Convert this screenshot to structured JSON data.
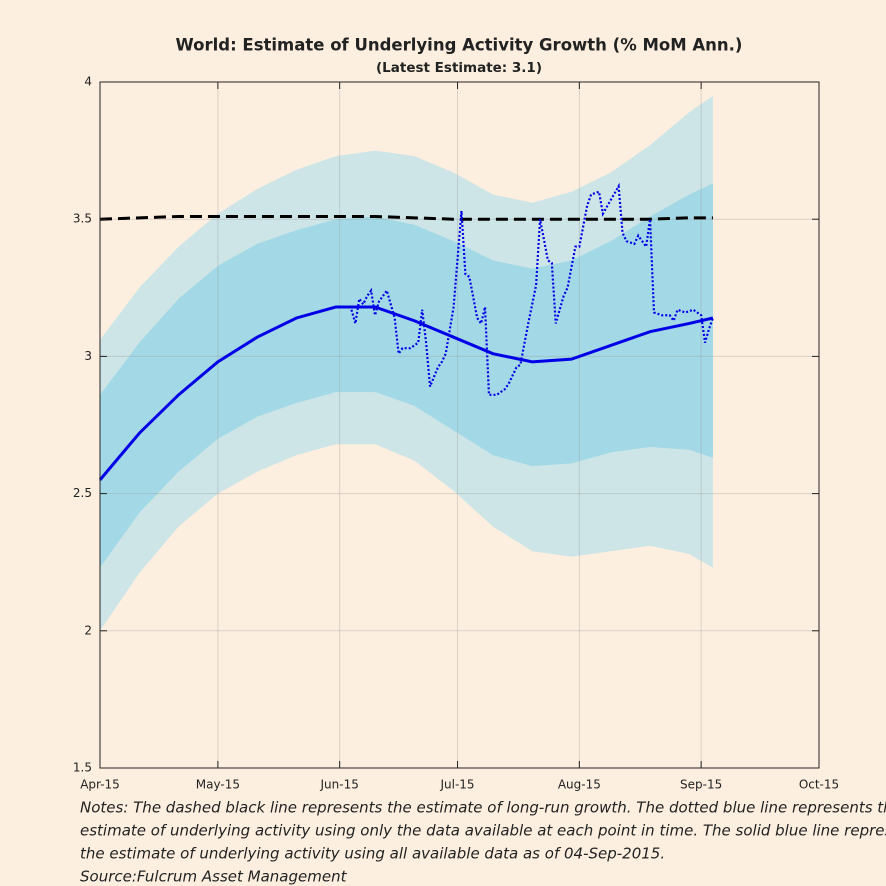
{
  "chart_data": {
    "type": "line",
    "title": "World: Estimate of Underlying Activity Growth (% MoM Ann.)",
    "subtitle": "(Latest Estimate: 3.1)",
    "xlim": [
      0,
      183
    ],
    "xticks": [
      {
        "value": 0,
        "label": "Apr-15"
      },
      {
        "value": 30,
        "label": "May-15"
      },
      {
        "value": 61,
        "label": "Jun-15"
      },
      {
        "value": 91,
        "label": "Jul-15"
      },
      {
        "value": 122,
        "label": "Aug-15"
      },
      {
        "value": 153,
        "label": "Sep-15"
      },
      {
        "value": 183,
        "label": "Oct-15"
      }
    ],
    "ylim": [
      1.5,
      4
    ],
    "yticks": [
      1.5,
      2,
      2.5,
      3,
      3.5,
      4
    ],
    "grid": true,
    "x": [
      0,
      10,
      20,
      30,
      40,
      50,
      60,
      70,
      80,
      90,
      100,
      110,
      120,
      130,
      140,
      150,
      156
    ],
    "bands": [
      {
        "color": "#cde5e6",
        "upper": [
          3.06,
          3.25,
          3.4,
          3.52,
          3.61,
          3.68,
          3.73,
          3.75,
          3.73,
          3.67,
          3.59,
          3.56,
          3.6,
          3.67,
          3.77,
          3.89,
          3.95
        ],
        "lower": [
          2.0,
          2.21,
          2.38,
          2.5,
          2.58,
          2.64,
          2.68,
          2.68,
          2.62,
          2.51,
          2.38,
          2.29,
          2.27,
          2.29,
          2.31,
          2.28,
          2.23
        ]
      },
      {
        "color": "#a3d9e7",
        "upper": [
          2.86,
          3.05,
          3.21,
          3.33,
          3.41,
          3.46,
          3.5,
          3.51,
          3.48,
          3.42,
          3.35,
          3.32,
          3.35,
          3.42,
          3.51,
          3.59,
          3.63
        ],
        "lower": [
          2.23,
          2.43,
          2.58,
          2.7,
          2.78,
          2.83,
          2.87,
          2.87,
          2.82,
          2.73,
          2.64,
          2.6,
          2.61,
          2.65,
          2.67,
          2.66,
          2.63
        ]
      }
    ],
    "series": [
      {
        "color": "#0000e6",
        "line_style": "solid",
        "values": [
          2.55,
          2.72,
          2.86,
          2.98,
          3.07,
          3.14,
          3.18,
          3.18,
          3.13,
          3.07,
          3.01,
          2.98,
          2.99,
          3.04,
          3.09,
          3.12,
          3.14
        ]
      },
      {
        "color": "#000000",
        "line_style": "dashed",
        "values": [
          3.5,
          3.505,
          3.51,
          3.51,
          3.51,
          3.51,
          3.51,
          3.51,
          3.505,
          3.5,
          3.5,
          3.5,
          3.5,
          3.5,
          3.5,
          3.505,
          3.505
        ]
      },
      {
        "color": "#0000e6",
        "line_style": "dotted",
        "x": [
          64,
          65,
          66,
          67,
          68,
          69,
          70,
          71,
          72,
          73,
          75,
          76,
          77,
          79,
          81,
          82,
          83,
          84,
          86,
          87,
          88,
          90,
          92,
          93,
          94,
          96,
          97,
          98,
          99,
          101,
          103,
          104,
          106,
          107,
          109,
          111,
          112,
          114,
          115,
          116,
          118,
          119,
          121,
          122,
          124,
          125,
          127,
          128,
          130,
          132,
          133,
          134,
          136,
          137,
          139,
          140,
          141,
          143,
          145,
          146,
          147,
          149,
          151,
          153,
          154,
          155,
          156
        ],
        "values": [
          3.17,
          3.12,
          3.21,
          3.19,
          3.22,
          3.24,
          3.15,
          3.2,
          3.22,
          3.24,
          3.14,
          3.01,
          3.03,
          3.03,
          3.05,
          3.17,
          3.05,
          2.89,
          2.96,
          2.98,
          3.01,
          3.18,
          3.53,
          3.3,
          3.29,
          3.14,
          3.12,
          3.18,
          2.86,
          2.86,
          2.88,
          2.9,
          2.96,
          2.97,
          3.12,
          3.26,
          3.5,
          3.35,
          3.34,
          3.12,
          3.22,
          3.25,
          3.4,
          3.4,
          3.55,
          3.59,
          3.6,
          3.52,
          3.57,
          3.62,
          3.45,
          3.42,
          3.41,
          3.44,
          3.4,
          3.5,
          3.16,
          3.15,
          3.15,
          3.13,
          3.17,
          3.16,
          3.17,
          3.15,
          3.05,
          3.1,
          3.14
        ]
      }
    ],
    "notes": [
      "Notes: The dashed black line represents the estimate of long-run growth. The dotted blue line represents the",
      "estimate of underlying activity using only the data available at each point in time. The solid blue line represents",
      "the estimate of underlying activity using all available data as of 04-Sep-2015."
    ],
    "source": "Source:Fulcrum Asset Management"
  }
}
